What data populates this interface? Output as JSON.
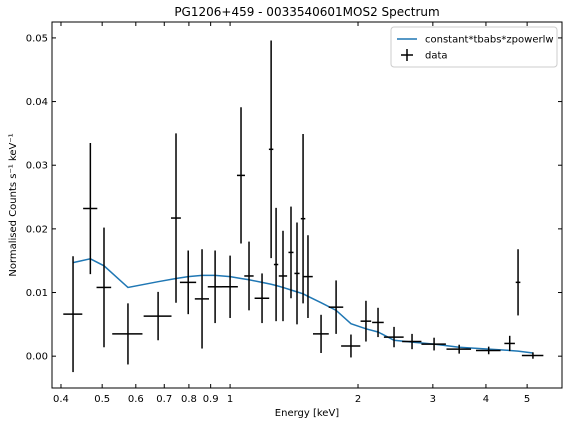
{
  "chart_data": {
    "type": "errorbar",
    "title": "PG1206+459 - 0033540601MOS2 Spectrum",
    "x_label": "Energy [keV]",
    "y_label": "Normalised Counts s⁻¹ keV⁻¹",
    "x_scale": "log",
    "xlim": [
      0.381,
      6.04
    ],
    "ylim": [
      -0.005,
      0.0525
    ],
    "xticks": [
      0.4,
      0.5,
      0.6,
      0.7,
      0.8,
      0.9,
      1,
      2,
      3,
      4,
      5
    ],
    "yticks": [
      {
        "value": 0,
        "label": "0.00"
      },
      {
        "value": 0.01,
        "label": "0.01"
      },
      {
        "value": 0.02,
        "label": "0.02"
      },
      {
        "value": 0.03,
        "label": "0.03"
      },
      {
        "value": 0.04,
        "label": "0.04"
      },
      {
        "value": 0.05,
        "label": "0.05"
      }
    ],
    "legend": "upper right",
    "series": [
      {
        "name": "constant*tbabs*zpowerlw",
        "type": "line",
        "color": "#1f77b4",
        "x": [
          0.427,
          0.469,
          0.505,
          0.575,
          0.677,
          0.746,
          0.797,
          0.859,
          0.922,
          1.0,
          1.061,
          1.108,
          1.189,
          1.249,
          1.283,
          1.332,
          1.391,
          1.437,
          1.485,
          1.525,
          1.637,
          1.776,
          1.925,
          2.088,
          2.229,
          2.431,
          2.68,
          3.02,
          3.46,
          4.06,
          4.55,
          4.76,
          5.16
        ],
        "values": [
          0.0147,
          0.0153,
          0.0142,
          0.0108,
          0.0117,
          0.0122,
          0.0125,
          0.0127,
          0.0127,
          0.0125,
          0.0122,
          0.012,
          0.0116,
          0.0113,
          0.0111,
          0.0108,
          0.0104,
          0.0101,
          0.0098,
          0.0094,
          0.0084,
          0.0072,
          0.0051,
          0.0043,
          0.0038,
          0.0025,
          0.0022,
          0.0019,
          0.0014,
          0.0011,
          0.0009,
          0.0008,
          0.0005
        ]
      },
      {
        "name": "data",
        "type": "errorbar",
        "color": "#000000",
        "x": [
          0.427,
          0.469,
          0.505,
          0.575,
          0.677,
          0.746,
          0.797,
          0.859,
          0.922,
          1.0,
          1.061,
          1.108,
          1.189,
          1.249,
          1.283,
          1.332,
          1.391,
          1.437,
          1.485,
          1.525,
          1.637,
          1.776,
          1.925,
          2.088,
          2.229,
          2.431,
          2.68,
          3.02,
          3.46,
          4.06,
          4.55,
          4.76,
          5.16
        ],
        "xerr": [
          0.022,
          0.018,
          0.02,
          0.047,
          0.051,
          0.02,
          0.035,
          0.033,
          0.036,
          0.043,
          0.023,
          0.028,
          0.047,
          0.015,
          0.015,
          0.03,
          0.019,
          0.02,
          0.018,
          0.04,
          0.07,
          0.07,
          0.1,
          0.06,
          0.07,
          0.13,
          0.14,
          0.2,
          0.23,
          0.27,
          0.13,
          0.06,
          0.3
        ],
        "values": [
          0.0066,
          0.0232,
          0.0108,
          0.0035,
          0.0063,
          0.0217,
          0.0116,
          0.009,
          0.0109,
          0.0109,
          0.0284,
          0.0126,
          0.0091,
          0.0325,
          0.0144,
          0.0126,
          0.0163,
          0.013,
          0.0216,
          0.0125,
          0.0035,
          0.0077,
          0.0016,
          0.0055,
          0.0053,
          0.003,
          0.0023,
          0.0019,
          0.0011,
          0.0009,
          0.002,
          0.0116,
          0.0001
        ],
        "yerr": [
          0.0091,
          0.0103,
          0.0094,
          0.0048,
          0.0038,
          0.0133,
          0.005,
          0.0078,
          0.0057,
          0.0049,
          0.0107,
          0.0054,
          0.0039,
          0.0171,
          0.0089,
          0.0071,
          0.0072,
          0.008,
          0.0133,
          0.0065,
          0.003,
          0.0042,
          0.0018,
          0.0032,
          0.0023,
          0.0016,
          0.0012,
          0.001,
          0.0007,
          0.0006,
          0.0012,
          0.0052,
          0.0005
        ]
      }
    ]
  }
}
